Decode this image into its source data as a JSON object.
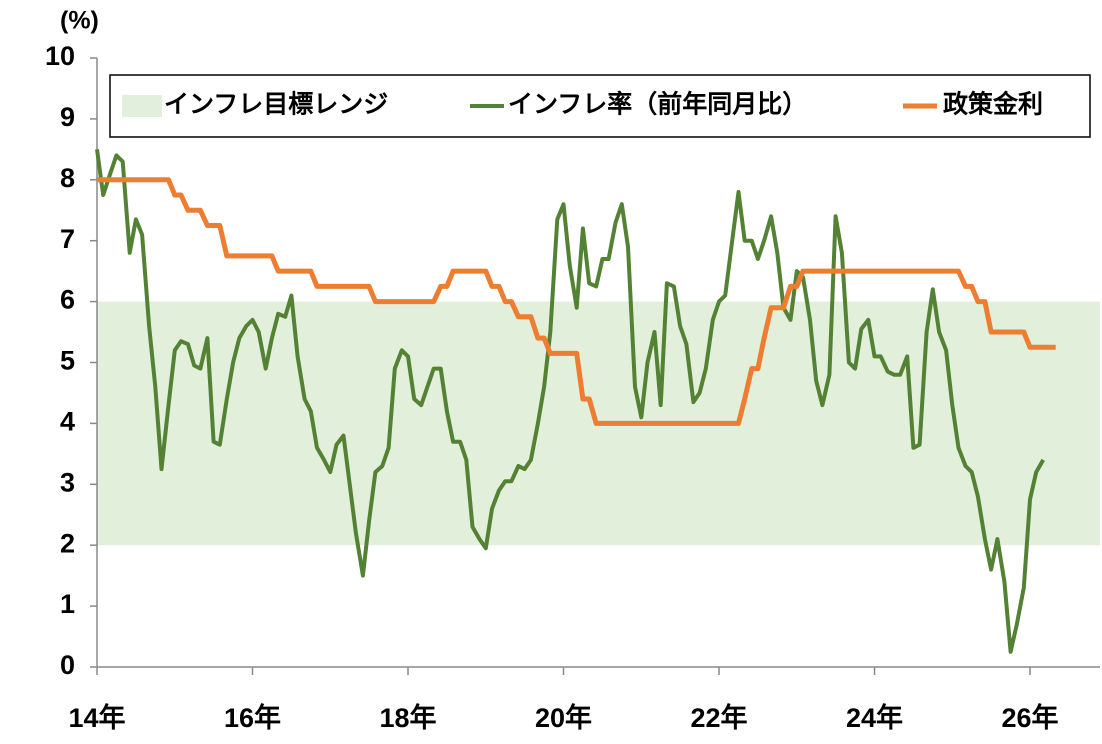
{
  "chart_data": {
    "type": "line",
    "ylabel": "(%)",
    "xlim": [
      14,
      26.9
    ],
    "ylim": [
      0,
      10
    ],
    "xticks": [
      {
        "value": 14,
        "label": "14年"
      },
      {
        "value": 16,
        "label": "16年"
      },
      {
        "value": 18,
        "label": "18年"
      },
      {
        "value": 20,
        "label": "20年"
      },
      {
        "value": 22,
        "label": "22年"
      },
      {
        "value": 24,
        "label": "24年"
      },
      {
        "value": 26,
        "label": "26年"
      }
    ],
    "yticks": [
      0,
      1,
      2,
      3,
      4,
      5,
      6,
      7,
      8,
      9,
      10
    ],
    "bands": [
      {
        "name": "インフレ目標レンジ",
        "color": "#e2efda",
        "range": [
          2,
          6
        ]
      }
    ],
    "series": [
      {
        "name": "インフレ率（前年同月比）",
        "color": "#548235",
        "width": 4,
        "x": [
          14,
          14.08,
          14.17,
          14.25,
          14.33,
          14.42,
          14.5,
          14.58,
          14.67,
          14.75,
          14.83,
          14.92,
          15,
          15.08,
          15.17,
          15.25,
          15.33,
          15.42,
          15.5,
          15.58,
          15.67,
          15.75,
          15.83,
          15.92,
          16,
          16.08,
          16.17,
          16.25,
          16.33,
          16.42,
          16.5,
          16.58,
          16.67,
          16.75,
          16.83,
          16.92,
          17,
          17.08,
          17.17,
          17.25,
          17.33,
          17.42,
          17.5,
          17.58,
          17.67,
          17.75,
          17.83,
          17.92,
          18,
          18.08,
          18.17,
          18.25,
          18.33,
          18.42,
          18.5,
          18.58,
          18.67,
          18.75,
          18.83,
          18.92,
          19,
          19.08,
          19.17,
          19.25,
          19.33,
          19.42,
          19.5,
          19.58,
          19.67,
          19.75,
          19.83,
          19.92,
          20,
          20.08,
          20.17,
          20.25,
          20.33,
          20.42,
          20.5,
          20.58,
          20.67,
          20.75,
          20.83,
          20.92,
          21,
          21.08,
          21.17,
          21.25,
          21.33,
          21.42,
          21.5,
          21.58,
          21.67,
          21.75,
          21.83,
          21.92,
          22,
          22.08,
          22.17,
          22.25,
          22.33,
          22.42,
          22.5,
          22.58,
          22.67,
          22.75,
          22.83,
          22.92,
          23,
          23.08,
          23.17,
          23.25,
          23.33,
          23.42,
          23.5,
          23.58,
          23.67,
          23.75,
          23.83,
          23.92,
          24,
          24.08,
          24.17,
          24.25,
          24.33,
          24.42,
          24.5,
          24.58,
          24.67,
          24.75,
          24.83,
          24.92,
          25,
          25.08,
          25.17,
          25.25,
          25.33,
          25.42,
          25.5,
          25.58,
          25.67,
          25.75,
          25.83,
          25.92,
          26,
          26.08,
          26.17
        ],
        "values": [
          8.5,
          7.75,
          8.1,
          8.4,
          8.3,
          6.8,
          7.35,
          7.1,
          5.6,
          4.6,
          3.25,
          4.3,
          5.2,
          5.35,
          5.3,
          4.95,
          4.9,
          5.4,
          3.7,
          3.65,
          4.4,
          5.0,
          5.4,
          5.6,
          5.7,
          5.5,
          4.9,
          5.4,
          5.8,
          5.75,
          6.1,
          5.1,
          4.4,
          4.2,
          3.6,
          3.4,
          3.2,
          3.65,
          3.8,
          3.0,
          2.2,
          1.5,
          2.4,
          3.2,
          3.3,
          3.6,
          4.9,
          5.2,
          5.1,
          4.4,
          4.3,
          4.6,
          4.9,
          4.9,
          4.2,
          3.7,
          3.7,
          3.4,
          2.3,
          2.1,
          1.95,
          2.6,
          2.9,
          3.05,
          3.05,
          3.3,
          3.25,
          3.4,
          4.0,
          4.6,
          5.5,
          7.35,
          7.6,
          6.6,
          5.9,
          7.2,
          6.3,
          6.25,
          6.7,
          6.7,
          7.3,
          7.6,
          6.9,
          4.6,
          4.1,
          5.0,
          5.5,
          4.3,
          6.3,
          6.25,
          5.6,
          5.3,
          4.35,
          4.5,
          4.9,
          5.7,
          6.0,
          6.1,
          7.0,
          7.8,
          7.0,
          7.0,
          6.7,
          7.0,
          7.4,
          6.8,
          5.9,
          5.7,
          6.5,
          6.4,
          5.7,
          4.7,
          4.3,
          4.8,
          7.4,
          6.8,
          5.0,
          4.9,
          5.55,
          5.7,
          5.1,
          5.1,
          4.85,
          4.8,
          4.8,
          5.1,
          3.6,
          3.65,
          5.5,
          6.2,
          5.5,
          5.2,
          4.3,
          3.6,
          3.3,
          3.2,
          2.8,
          2.1,
          1.6,
          2.1,
          1.4,
          0.25,
          0.7,
          1.3,
          2.75,
          3.2,
          3.4
        ]
      },
      {
        "name": "政策金利",
        "color": "#ed7d31",
        "width": 5,
        "x": [
          14,
          14.92,
          15,
          15.08,
          15.17,
          15.33,
          15.42,
          15.58,
          15.67,
          16.25,
          16.33,
          16.75,
          16.83,
          17.5,
          17.58,
          18.33,
          18.42,
          18.5,
          18.58,
          19,
          19.08,
          19.17,
          19.25,
          19.33,
          19.42,
          19.58,
          19.67,
          19.75,
          19.83,
          20.17,
          20.25,
          20.33,
          20.42,
          22.25,
          22.33,
          22.42,
          22.5,
          22.58,
          22.67,
          22.83,
          22.92,
          23,
          23.08,
          25.08,
          25.17,
          25.25,
          25.33,
          25.42,
          25.5,
          25.92,
          26,
          26.33
        ],
        "values": [
          8,
          8,
          7.75,
          7.75,
          7.5,
          7.5,
          7.25,
          7.25,
          6.75,
          6.75,
          6.5,
          6.5,
          6.25,
          6.25,
          6,
          6,
          6.25,
          6.25,
          6.5,
          6.5,
          6.25,
          6.25,
          6,
          6,
          5.75,
          5.75,
          5.4,
          5.4,
          5.15,
          5.15,
          4.4,
          4.4,
          4,
          4,
          4.4,
          4.9,
          4.9,
          5.4,
          5.9,
          5.9,
          6.25,
          6.25,
          6.5,
          6.5,
          6.25,
          6.25,
          6,
          6,
          5.5,
          5.5,
          5.25,
          5.25
        ]
      }
    ],
    "legend": "top"
  }
}
